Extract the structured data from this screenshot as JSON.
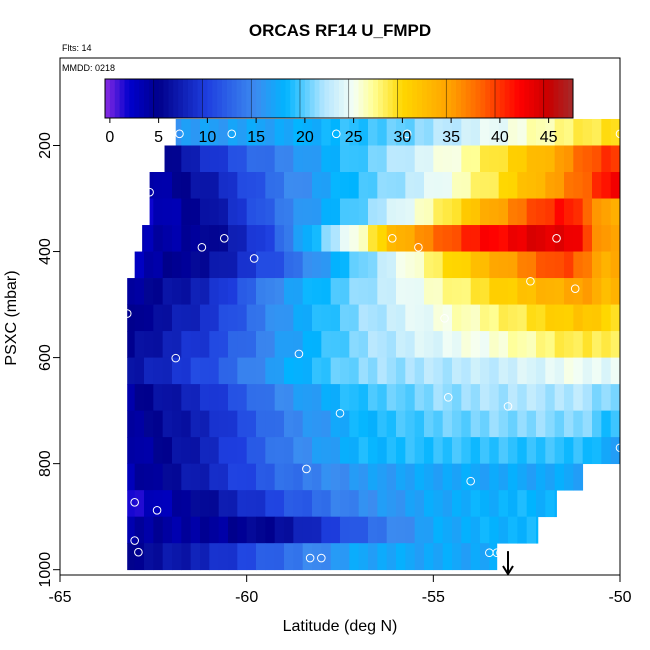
{
  "chart_data": {
    "type": "heatmap",
    "title": "ORCAS RF14 U_FMPD",
    "annotations": {
      "flights": "Flts: 14",
      "date": "MMDD: 0218"
    },
    "xlabel": "Latitude (deg N)",
    "ylabel": "PSXC (mbar)",
    "xlim": [
      -65,
      -50
    ],
    "ylim": [
      1010,
      35
    ],
    "x_ticks": [
      -65,
      -60,
      -55,
      -50
    ],
    "y_ticks": [
      200,
      400,
      600,
      800,
      1000
    ],
    "y_reversed": true,
    "colorbar": {
      "range": [
        -0.5,
        47.5
      ],
      "ticks": [
        0,
        5,
        10,
        15,
        20,
        25,
        30,
        35,
        40,
        45
      ],
      "stops": [
        [
          -0.5,
          "#8a2be2"
        ],
        [
          2,
          "#0000cd"
        ],
        [
          5,
          "#00008b"
        ],
        [
          10,
          "#1e3fe0"
        ],
        [
          15,
          "#3c8cf0"
        ],
        [
          18,
          "#00b4ff"
        ],
        [
          22,
          "#b4e6ff"
        ],
        [
          25,
          "#f5fff5"
        ],
        [
          27,
          "#ffff96"
        ],
        [
          30,
          "#ffd700"
        ],
        [
          35,
          "#ffa000"
        ],
        [
          38,
          "#ff6400"
        ],
        [
          42,
          "#ff0000"
        ],
        [
          45,
          "#c80000"
        ],
        [
          47.5,
          "#a52a2a"
        ]
      ]
    },
    "grid": {
      "lat_edges_start": -63.0,
      "lat_step": 0.25,
      "row_height_mbar": 50,
      "rows": [
        {
          "p": 175,
          "lat_min": -61.9,
          "lat_max": -50,
          "lat": [
            -62,
            -59,
            -56,
            -53,
            -50
          ],
          "val": [
            16,
            17,
            20,
            25,
            30
          ]
        },
        {
          "p": 225,
          "lat_min": -62.2,
          "lat_max": -50,
          "lat": [
            -62.2,
            -60,
            -58,
            -56,
            -54,
            -52,
            -50.5
          ],
          "val": [
            5,
            12,
            17,
            22,
            27,
            33,
            40
          ]
        },
        {
          "p": 275,
          "lat_min": -62.6,
          "lat_max": -50,
          "lat": [
            -62.6,
            -61,
            -59,
            -57,
            -55,
            -53,
            -51,
            -50.3
          ],
          "val": [
            3,
            7,
            14,
            19,
            24,
            30,
            38,
            42
          ]
        },
        {
          "p": 325,
          "lat_min": -62.6,
          "lat_max": -50,
          "lat": [
            -62.6,
            -61,
            -59,
            -57,
            -55,
            -53,
            -51.5,
            -50.3
          ],
          "val": [
            2,
            6,
            14,
            20,
            27,
            36,
            42,
            34
          ]
        },
        {
          "p": 375,
          "lat_min": -62.8,
          "lat_max": -50,
          "lat": [
            -62.8,
            -61,
            -59.5,
            -58,
            -57,
            -56,
            -54,
            -52,
            -51.2,
            -50.5
          ],
          "val": [
            3,
            5,
            10,
            20,
            26,
            33,
            41,
            44,
            43,
            35
          ]
        },
        {
          "p": 425,
          "lat_min": -63.0,
          "lat_max": -50,
          "lat": [
            -63,
            -61,
            -59,
            -57,
            -55,
            -53,
            -51.5,
            -50.5
          ],
          "val": [
            3,
            6,
            12,
            20,
            28,
            35,
            40,
            34
          ]
        },
        {
          "p": 475,
          "lat_min": -63.2,
          "lat_max": -50,
          "lat": [
            -63.2,
            -61,
            -59,
            -57,
            -55,
            -53,
            -51,
            -50.4
          ],
          "val": [
            4,
            8,
            16,
            21,
            26,
            31,
            35,
            33
          ]
        },
        {
          "p": 525,
          "lat_min": -63.2,
          "lat_max": -50,
          "lat": [
            -63.2,
            -61,
            -59,
            -57,
            -55,
            -53,
            -51,
            -50.4
          ],
          "val": [
            4,
            9,
            16,
            21,
            25,
            28,
            32,
            30
          ]
        },
        {
          "p": 575,
          "lat_min": -63.2,
          "lat_max": -50,
          "lat": [
            -63.2,
            -61,
            -59,
            -57,
            -55,
            -53,
            -51,
            -50.4
          ],
          "val": [
            5,
            10,
            16,
            21,
            24,
            26,
            29,
            28
          ]
        },
        {
          "p": 625,
          "lat_min": -63.2,
          "lat_max": -50,
          "lat": [
            -63.2,
            -61,
            -59,
            -57,
            -55,
            -53,
            -51,
            -50.4
          ],
          "val": [
            6,
            11,
            17,
            21,
            22,
            23,
            25,
            24
          ]
        },
        {
          "p": 675,
          "lat_min": -63.2,
          "lat_max": -50,
          "lat": [
            -63.2,
            -61,
            -59,
            -57,
            -55,
            -53,
            -51,
            -50.4
          ],
          "val": [
            4,
            9,
            15,
            19,
            21,
            22,
            22,
            21
          ]
        },
        {
          "p": 725,
          "lat_min": -63.2,
          "lat_max": -50,
          "lat": [
            -63.2,
            -61,
            -59,
            -57,
            -55,
            -53,
            -51,
            -50.4
          ],
          "val": [
            4,
            8,
            14,
            18,
            20,
            21,
            21,
            19
          ]
        },
        {
          "p": 775,
          "lat_min": -63.2,
          "lat_max": -50,
          "lat": [
            -63.2,
            -61,
            -59,
            -57,
            -55,
            -53,
            -51,
            -50.4
          ],
          "val": [
            3,
            8,
            14,
            18,
            19,
            19,
            19,
            17
          ]
        },
        {
          "p": 825,
          "lat_min": -63.2,
          "lat_max": -51.0,
          "lat": [
            -63.2,
            -61,
            -59,
            -57,
            -55,
            -53,
            -51.2
          ],
          "val": [
            3,
            8,
            13,
            16,
            17,
            17,
            17
          ]
        },
        {
          "p": 875,
          "lat_min": -63.2,
          "lat_max": -51.7,
          "lat": [
            -63.2,
            -61,
            -59,
            -57,
            -55,
            -53,
            -52
          ],
          "val": [
            1,
            6,
            11,
            15,
            17,
            18,
            18
          ]
        },
        {
          "p": 925,
          "lat_min": -63.2,
          "lat_max": -52.2,
          "lat": [
            -63.2,
            -61,
            -59,
            -57,
            -55,
            -53,
            -52.4
          ],
          "val": [
            4,
            4,
            6,
            12,
            17,
            18,
            18
          ]
        },
        {
          "p": 975,
          "lat_min": -63.2,
          "lat_max": -53.3,
          "lat": [
            -63.2,
            -61,
            -59,
            -57,
            -55,
            -53.5
          ],
          "val": [
            5,
            8,
            13,
            17,
            17,
            17
          ]
        }
      ]
    },
    "circles": [
      [
        -62.0,
        178
      ],
      [
        -61.8,
        178
      ],
      [
        -60.4,
        178
      ],
      [
        -57.6,
        178
      ],
      [
        -55.7,
        178
      ],
      [
        -50.0,
        178
      ],
      [
        -49.9,
        195
      ],
      [
        -62.6,
        288
      ],
      [
        -49.9,
        292
      ],
      [
        -60.6,
        375
      ],
      [
        -61.2,
        392
      ],
      [
        -56.1,
        375
      ],
      [
        -55.4,
        392
      ],
      [
        -51.7,
        375
      ],
      [
        -59.8,
        413
      ],
      [
        -52.4,
        456
      ],
      [
        -51.2,
        470
      ],
      [
        -54.7,
        526
      ],
      [
        -63.2,
        517
      ],
      [
        -58.6,
        593
      ],
      [
        -61.9,
        601
      ],
      [
        -54.6,
        675
      ],
      [
        -53.0,
        692
      ],
      [
        -57.5,
        705
      ],
      [
        -50.0,
        770
      ],
      [
        -58.4,
        810
      ],
      [
        -54.0,
        833
      ],
      [
        -63.0,
        873
      ],
      [
        -62.4,
        888
      ],
      [
        -63.0,
        945
      ],
      [
        -62.9,
        967
      ],
      [
        -58.3,
        978
      ],
      [
        -58.0,
        978
      ],
      [
        -53.5,
        968
      ],
      [
        -53.3,
        968
      ],
      [
        -53.2,
        968
      ]
    ],
    "marker_arrow": {
      "lat": -53.0,
      "p_from": 965,
      "p_to": 1010
    }
  }
}
